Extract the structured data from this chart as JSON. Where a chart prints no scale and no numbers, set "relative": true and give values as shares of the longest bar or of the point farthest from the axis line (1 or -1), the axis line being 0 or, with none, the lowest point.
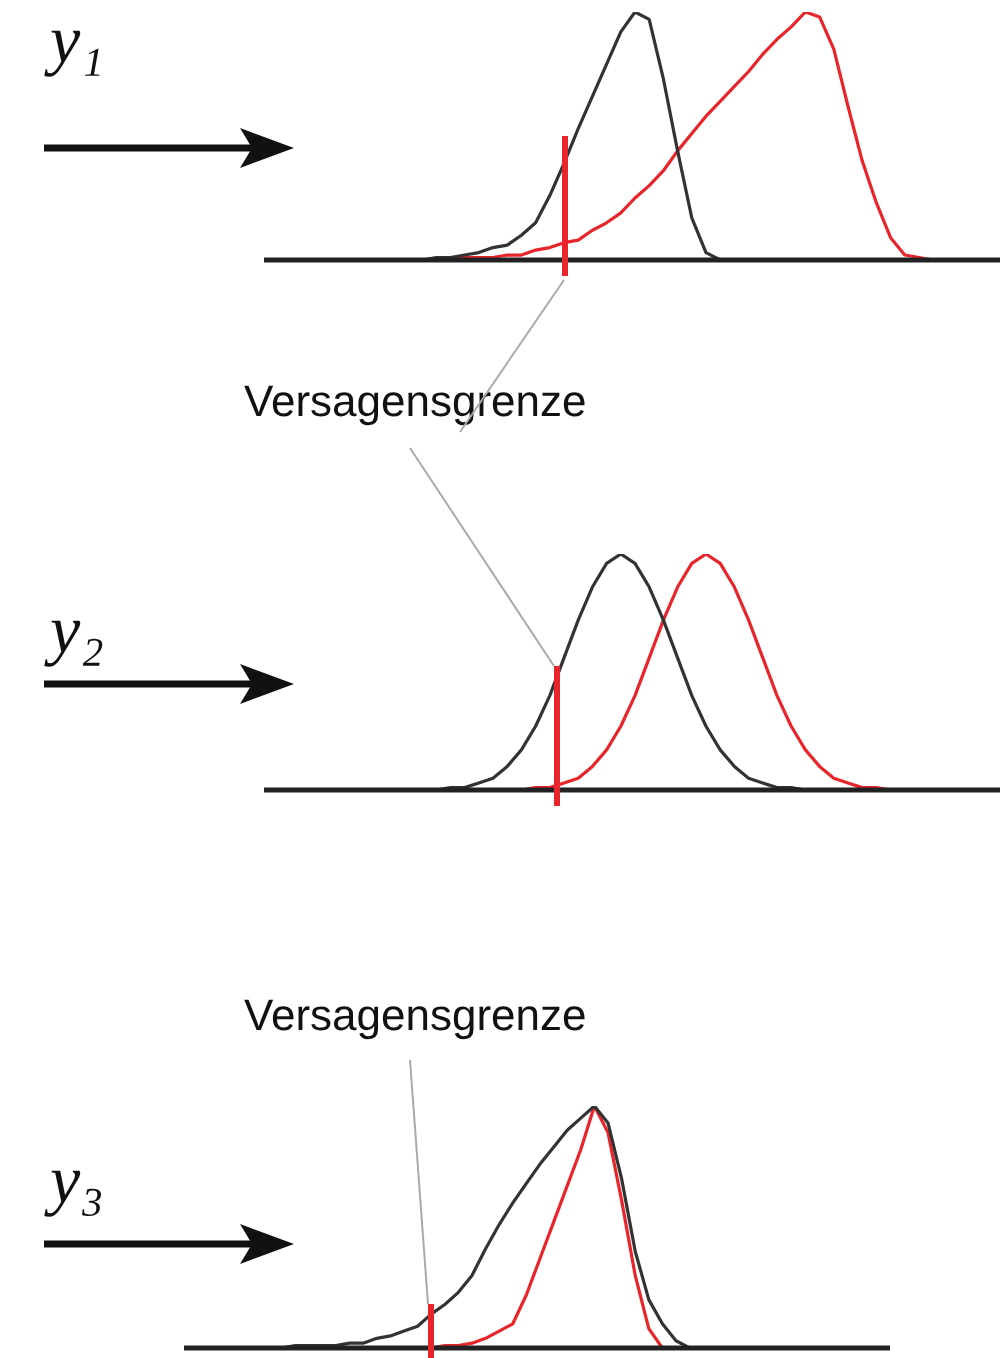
{
  "chart_data": [
    {
      "type": "line",
      "ylabel": "y₁",
      "relative": true,
      "marker": "none",
      "tick_labels": false,
      "categories": [
        null,
        null,
        null,
        null,
        null,
        null,
        null,
        null,
        null,
        null,
        null,
        null,
        null,
        null,
        null,
        null,
        null,
        null,
        null,
        null,
        null,
        null,
        null,
        null,
        null,
        null,
        null,
        null,
        null,
        null,
        null,
        null,
        null,
        null,
        null,
        null,
        null,
        null,
        null,
        null,
        null,
        null,
        null,
        null,
        null,
        null,
        null,
        null,
        null,
        null,
        null
      ],
      "series": [
        {
          "color": "#333333",
          "values": [
            null,
            null,
            null,
            null,
            null,
            null,
            null,
            null,
            0,
            0,
            0,
            0.01,
            0.01,
            0.02,
            0.03,
            0.05,
            0.06,
            0.1,
            0.15,
            0.26,
            0.39,
            0.53,
            0.66,
            0.79,
            0.92,
            1,
            0.97,
            0.73,
            0.44,
            0.17,
            0.03,
            0,
            null,
            null,
            null,
            null,
            null,
            null,
            null,
            null,
            null,
            null,
            null,
            null,
            null,
            null,
            null,
            null,
            null,
            null,
            null
          ]
        },
        {
          "color": "#e8252a",
          "values": [
            null,
            null,
            null,
            null,
            null,
            null,
            null,
            null,
            null,
            null,
            null,
            null,
            0.01,
            0.01,
            0.01,
            0.01,
            0.02,
            0.02,
            0.04,
            0.05,
            0.07,
            0.08,
            0.12,
            0.15,
            0.19,
            0.25,
            0.3,
            0.36,
            0.44,
            0.51,
            0.58,
            0.64,
            0.7,
            0.76,
            0.83,
            0.89,
            0.94,
            1,
            0.98,
            0.85,
            0.62,
            0.4,
            0.23,
            0.09,
            0.02,
            0.01,
            0,
            null,
            null,
            null,
            null
          ]
        }
      ],
      "annotations": [
        "Versagensgrenze"
      ]
    },
    {
      "type": "line",
      "ylabel": "y₂",
      "relative": true,
      "marker": "none",
      "tick_labels": false,
      "categories": [
        null,
        null,
        null,
        null,
        null,
        null,
        null,
        null,
        null,
        null,
        null,
        null,
        null,
        null,
        null,
        null,
        null,
        null,
        null,
        null,
        null,
        null,
        null,
        null,
        null,
        null,
        null,
        null,
        null,
        null,
        null,
        null,
        null,
        null,
        null,
        null,
        null,
        null,
        null,
        null,
        null,
        null,
        null,
        null,
        null,
        null,
        null,
        null,
        null,
        null,
        null
      ],
      "series": [
        {
          "color": "#333333",
          "values": [
            null,
            null,
            null,
            null,
            null,
            null,
            null,
            null,
            null,
            null,
            null,
            0,
            0.01,
            0.01,
            0.03,
            0.05,
            0.1,
            0.17,
            0.27,
            0.4,
            0.56,
            0.72,
            0.86,
            0.96,
            1,
            0.96,
            0.86,
            0.72,
            0.56,
            0.4,
            0.27,
            0.17,
            0.1,
            0.05,
            0.03,
            0.01,
            0.01,
            0,
            null,
            null,
            null,
            null,
            null,
            null,
            null,
            null,
            null,
            null,
            null,
            null,
            null
          ]
        },
        {
          "color": "#e8252a",
          "values": [
            null,
            null,
            null,
            null,
            null,
            null,
            null,
            null,
            null,
            null,
            null,
            null,
            null,
            null,
            null,
            null,
            null,
            0,
            0.01,
            0.01,
            0.03,
            0.05,
            0.1,
            0.17,
            0.27,
            0.4,
            0.56,
            0.72,
            0.86,
            0.96,
            1,
            0.96,
            0.86,
            0.72,
            0.56,
            0.4,
            0.27,
            0.17,
            0.1,
            0.05,
            0.03,
            0.01,
            0.01,
            0,
            null,
            null,
            null,
            null,
            null,
            null,
            null
          ]
        }
      ]
    },
    {
      "type": "line",
      "ylabel": "y₃",
      "relative": true,
      "marker": "none",
      "tick_labels": false,
      "categories": [
        null,
        null,
        null,
        null,
        null,
        null,
        null,
        null,
        null,
        null,
        null,
        null,
        null,
        null,
        null,
        null,
        null,
        null,
        null,
        null,
        null,
        null,
        null,
        null,
        null,
        null,
        null,
        null,
        null,
        null,
        null,
        null,
        null,
        null,
        null,
        null,
        null,
        null,
        null,
        null,
        null,
        null,
        null,
        null,
        null,
        null,
        null,
        null,
        null,
        null,
        null
      ],
      "series": [
        {
          "color": "#333333",
          "values": [
            null,
            null,
            null,
            null,
            0,
            0,
            0,
            0.01,
            0.01,
            0.01,
            0.01,
            0.02,
            0.02,
            0.04,
            0.05,
            0.07,
            0.09,
            0.14,
            0.18,
            0.23,
            0.3,
            0.41,
            0.51,
            0.6,
            0.68,
            0.76,
            0.83,
            0.9,
            0.95,
            1,
            0.93,
            0.7,
            0.4,
            0.2,
            0.1,
            0.03,
            0,
            null,
            null,
            null,
            null,
            null,
            null,
            null,
            null,
            null,
            null,
            null,
            null,
            null,
            null
          ]
        },
        {
          "color": "#e8252a",
          "values": [
            null,
            null,
            null,
            null,
            null,
            null,
            null,
            null,
            null,
            null,
            null,
            null,
            null,
            null,
            null,
            null,
            0,
            0,
            0.01,
            0.01,
            0.02,
            0.04,
            0.07,
            0.1,
            0.22,
            0.37,
            0.52,
            0.67,
            0.82,
            1,
            0.89,
            0.61,
            0.3,
            0.08,
            0,
            null,
            null,
            null,
            null,
            null,
            null,
            null,
            null,
            null,
            null,
            null,
            null,
            null,
            null,
            null,
            null
          ]
        }
      ],
      "annotations": [
        "Versagensgrenze"
      ]
    }
  ]
}
